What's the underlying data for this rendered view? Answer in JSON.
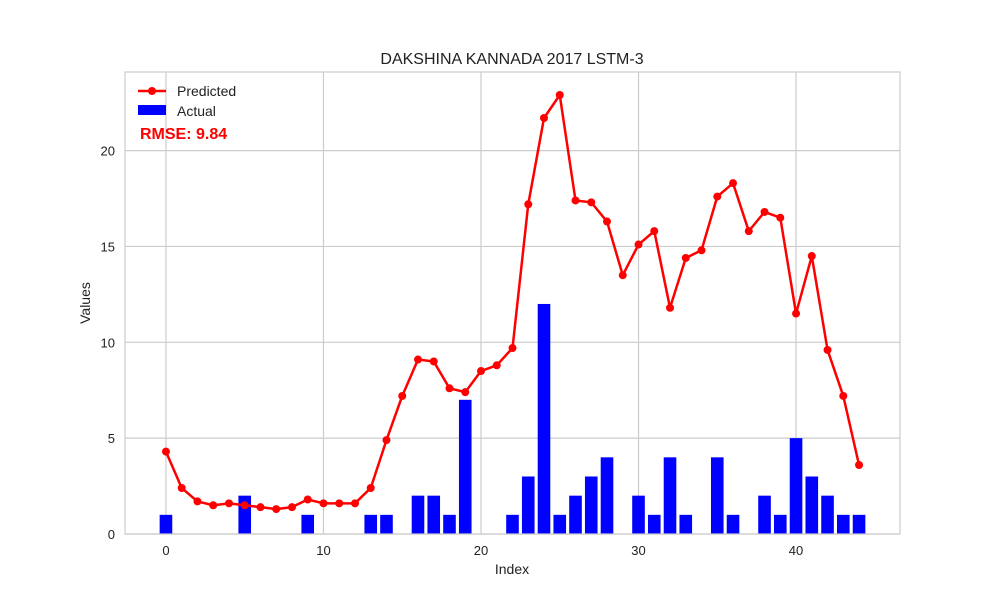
{
  "chart_data": {
    "type": "bar",
    "title": "DAKSHINA KANNADA 2017 LSTM-3",
    "xlabel": "Index",
    "ylabel": "Values",
    "xlim": [
      -2.6,
      46.6
    ],
    "ylim": [
      0,
      24.1
    ],
    "xticks": [
      0,
      10,
      20,
      30,
      40
    ],
    "yticks": [
      0,
      5,
      10,
      15,
      20
    ],
    "grid": true,
    "legend_position": "top-left",
    "annotation": {
      "text": "RMSE: 9.84",
      "color": "#ff0000"
    },
    "series": [
      {
        "name": "Predicted",
        "type": "line",
        "marker": "circle",
        "color": "#ff0000",
        "x": [
          0,
          1,
          2,
          3,
          4,
          5,
          6,
          7,
          8,
          9,
          10,
          11,
          12,
          13,
          14,
          15,
          16,
          17,
          18,
          19,
          20,
          21,
          22,
          23,
          24,
          25,
          26,
          27,
          28,
          29,
          30,
          31,
          32,
          33,
          34,
          35,
          36,
          37,
          38,
          39,
          40,
          41,
          42,
          43,
          44
        ],
        "values": [
          4.3,
          2.4,
          1.7,
          1.5,
          1.6,
          1.5,
          1.4,
          1.3,
          1.4,
          1.8,
          1.6,
          1.6,
          1.6,
          2.4,
          4.9,
          7.2,
          9.1,
          9.0,
          7.6,
          7.4,
          8.5,
          8.8,
          9.7,
          17.2,
          21.7,
          22.9,
          17.4,
          17.3,
          16.3,
          13.5,
          15.1,
          15.8,
          11.8,
          14.4,
          14.8,
          17.6,
          18.3,
          15.8,
          16.8,
          16.5,
          11.5,
          14.5,
          9.6,
          7.2,
          3.6
        ]
      },
      {
        "name": "Actual",
        "type": "bar",
        "color": "#0000ff",
        "x": [
          0,
          1,
          2,
          3,
          4,
          5,
          6,
          7,
          8,
          9,
          10,
          11,
          12,
          13,
          14,
          15,
          16,
          17,
          18,
          19,
          20,
          21,
          22,
          23,
          24,
          25,
          26,
          27,
          28,
          29,
          30,
          31,
          32,
          33,
          34,
          35,
          36,
          37,
          38,
          39,
          40,
          41,
          42,
          43,
          44
        ],
        "values": [
          1,
          0,
          0,
          0,
          0,
          2,
          0,
          0,
          0,
          1,
          0,
          0,
          0,
          1,
          1,
          0,
          2,
          2,
          1,
          7,
          0,
          0,
          1,
          3,
          12,
          1,
          2,
          3,
          4,
          0,
          2,
          1,
          4,
          1,
          0,
          4,
          1,
          0,
          2,
          1,
          5,
          3,
          2,
          1,
          1
        ]
      }
    ]
  }
}
